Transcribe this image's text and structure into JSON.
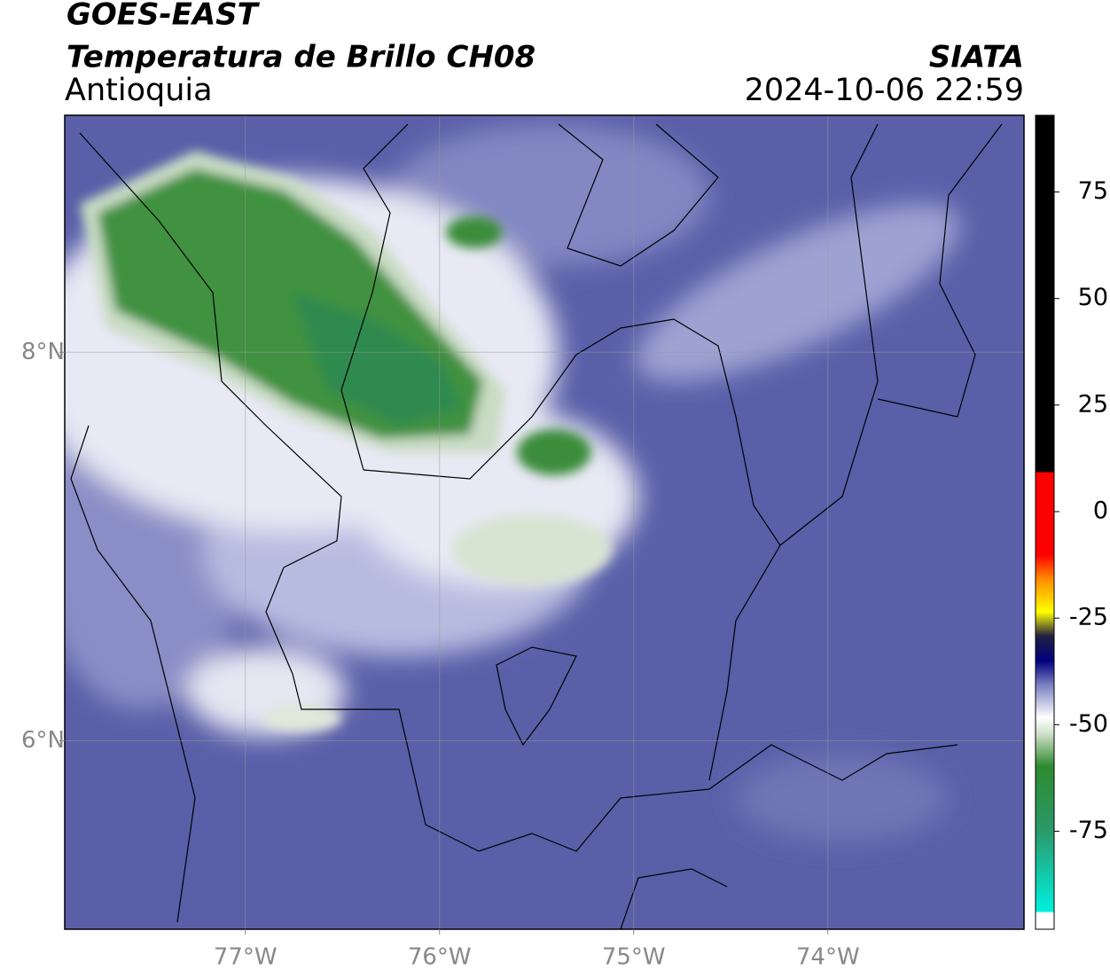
{
  "header": {
    "satellite": "GOES-EAST",
    "product": "Temperatura de Brillo CH08",
    "region": "Antioquia",
    "source": "SIATA",
    "datetime": "2024-10-06 22:59"
  },
  "map": {
    "xlim": [
      -77.93,
      -72.99
    ],
    "ylim": [
      5.03,
      9.22
    ],
    "xticks": [
      {
        "value": -77,
        "label": "77°W"
      },
      {
        "value": -76,
        "label": "76°W"
      },
      {
        "value": -75,
        "label": "75°W"
      },
      {
        "value": -74,
        "label": "74°W"
      }
    ],
    "yticks": [
      {
        "value": 8,
        "label": "8°N"
      },
      {
        "value": 6,
        "label": "6°N"
      }
    ],
    "grid": true
  },
  "colorbar": {
    "lim": [
      -98,
      93
    ],
    "ticks": [
      75,
      50,
      25,
      0,
      -25,
      -50,
      -75
    ]
  }
}
